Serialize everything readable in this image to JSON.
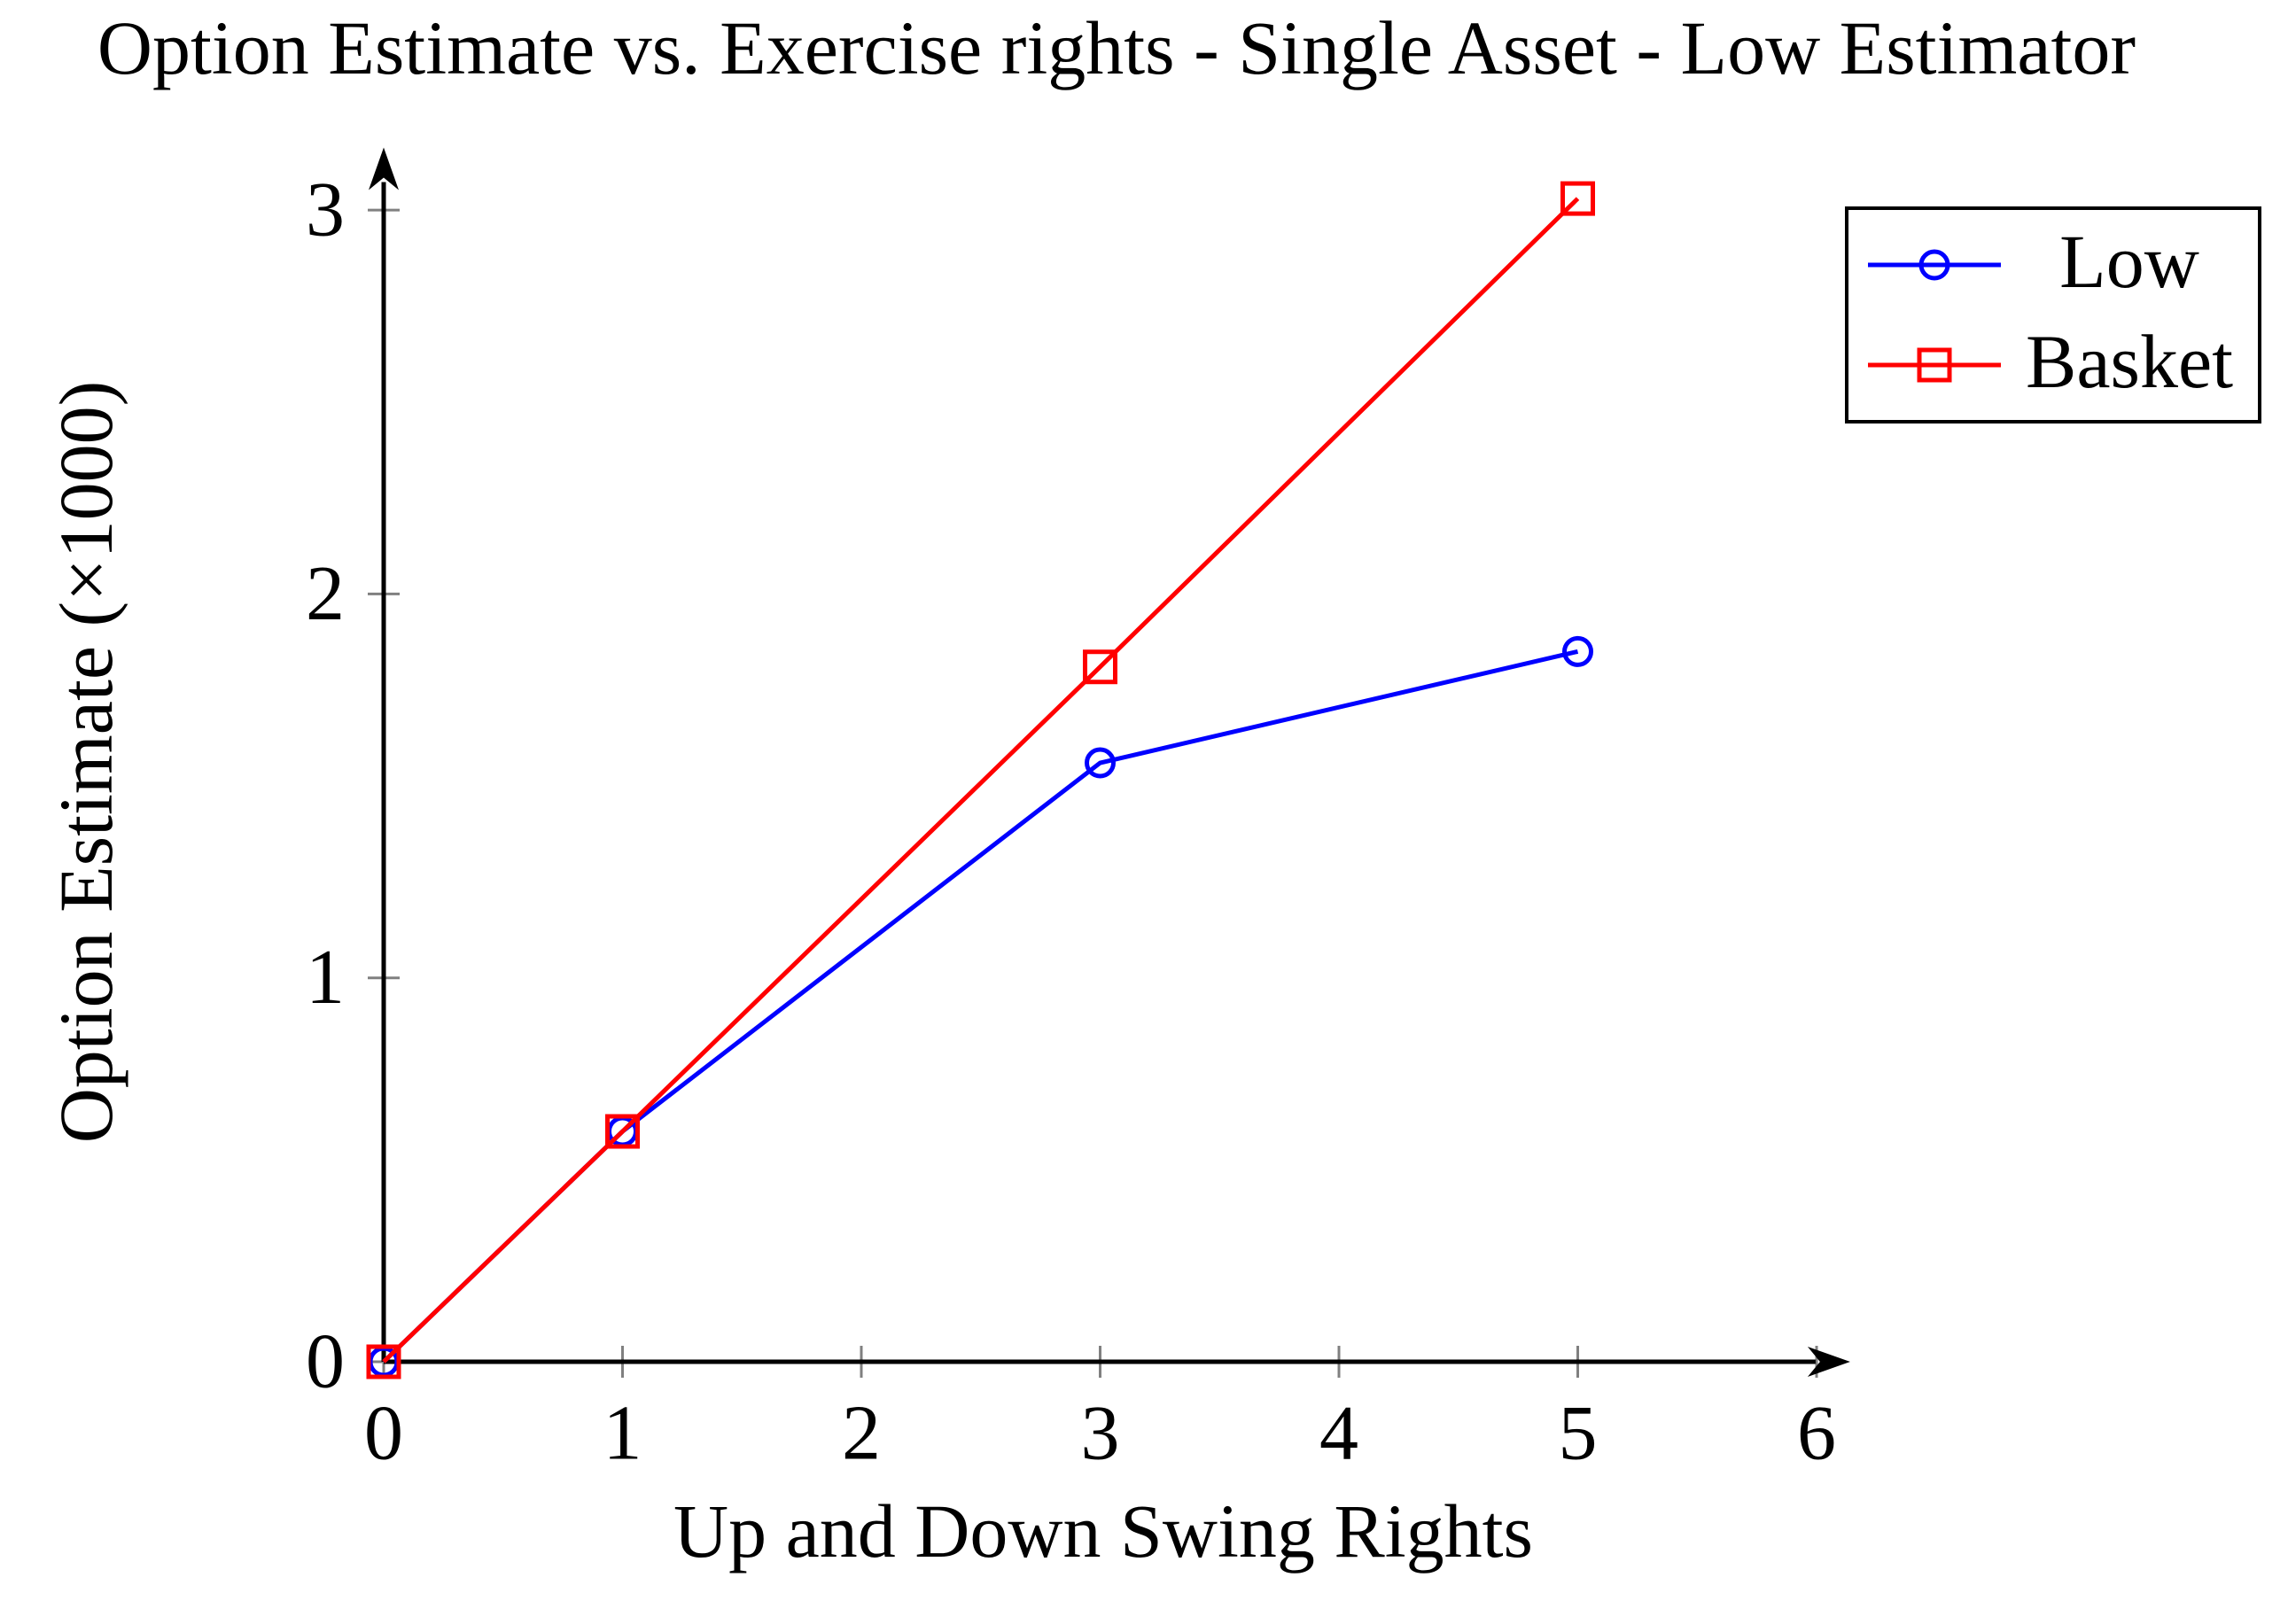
{
  "title": "Option Estimate vs. Exercise rights - Single Asset - Low Estimator",
  "colors": {
    "axis": "#000000",
    "tick": "#808080",
    "background": "#ffffff",
    "low_series": "#0000ff",
    "basket_series": "#ff0000",
    "text": "#000000"
  },
  "chart_data": {
    "type": "line",
    "title": "Option Estimate vs. Exercise rights - Single Asset - Low Estimator",
    "xlabel": "Up and Down Swing Rights",
    "ylabel": "Option Estimate (×1000)",
    "xlim": [
      0,
      6.2
    ],
    "ylim": [
      0,
      3.2
    ],
    "x_ticks": [
      0,
      1,
      2,
      3,
      4,
      5,
      6
    ],
    "y_ticks": [
      0,
      1,
      2,
      3
    ],
    "grid": false,
    "legend_position": "top-right",
    "legend_entries": [
      "Low",
      "Basket"
    ],
    "series": [
      {
        "name": "Low",
        "color": "#0000ff",
        "marker": "circle",
        "x": [
          0,
          1,
          3,
          5
        ],
        "y": [
          0,
          0.6,
          1.56,
          1.85
        ]
      },
      {
        "name": "Basket",
        "color": "#ff0000",
        "marker": "square",
        "x": [
          0,
          1,
          3,
          5
        ],
        "y": [
          0,
          0.6,
          1.81,
          3.03
        ]
      }
    ]
  }
}
